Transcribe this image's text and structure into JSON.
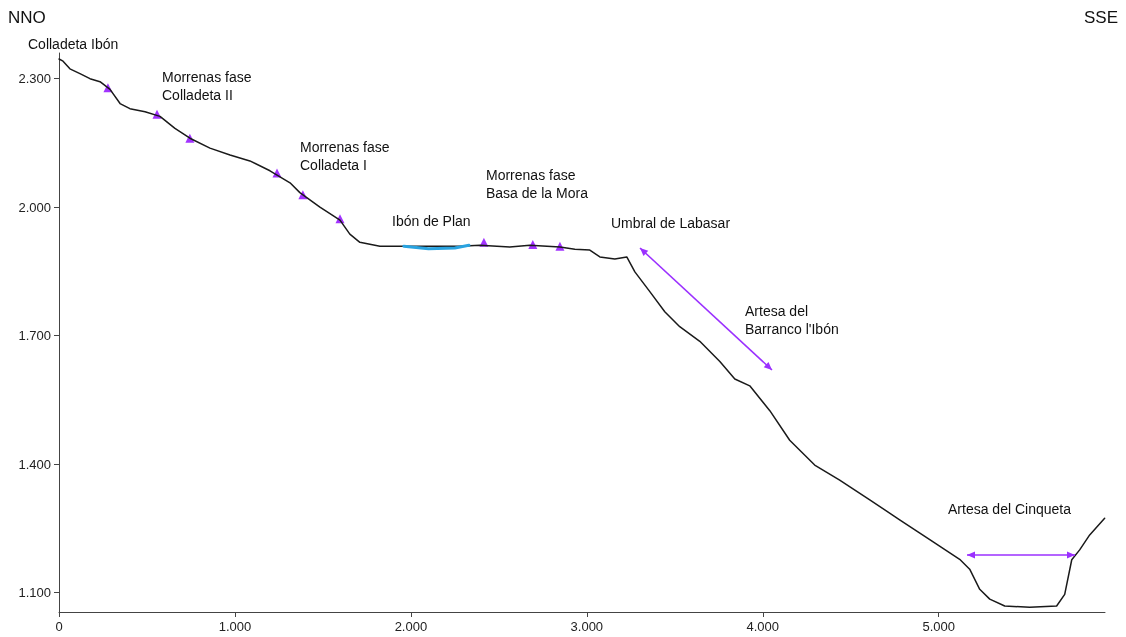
{
  "chart_data": {
    "type": "line",
    "xlim": [
      0,
      5945
    ],
    "ylim": [
      1055,
      2360
    ],
    "xticks": [
      0,
      {
        "value": 1000,
        "label": "1.000"
      },
      {
        "value": 2000,
        "label": "2.000"
      },
      {
        "value": 3000,
        "label": "3.000"
      },
      {
        "value": 4000,
        "label": "4.000"
      },
      {
        "value": 5000,
        "label": "5.000"
      }
    ],
    "yticks": [
      {
        "value": 1100,
        "label": "1.100"
      },
      {
        "value": 1400,
        "label": "1.400"
      },
      {
        "value": 1700,
        "label": "1.700"
      },
      {
        "value": 2000,
        "label": "2.000"
      },
      {
        "value": 2300,
        "label": "2.300"
      }
    ],
    "grid": false,
    "marker": "none",
    "line_style": "solid",
    "series": [
      {
        "color": "#1a1a1a",
        "x": [
          0,
          23,
          62,
          119,
          176,
          233,
          290,
          347,
          403,
          489,
          574,
          659,
          744,
          858,
          972,
          1085,
          1199,
          1313,
          1369,
          1483,
          1597,
          1653,
          1710,
          1824,
          1994,
          2278,
          2392,
          2562,
          2676,
          2847,
          2932,
          3017,
          3074,
          3159,
          3227,
          3273,
          3358,
          3443,
          3528,
          3642,
          3756,
          3841,
          3926,
          4040,
          4153,
          4295,
          4437,
          4608,
          4778,
          4949,
          5119,
          5176,
          5233,
          5290,
          5375,
          5517,
          5670,
          5716,
          5756,
          5801,
          5858,
          5943
        ],
        "values": [
          2346,
          2341,
          2323,
          2312,
          2300,
          2293,
          2275,
          2242,
          2230,
          2223,
          2212,
          2184,
          2161,
          2138,
          2122,
          2108,
          2085,
          2057,
          2034,
          2000,
          1970,
          1937,
          1918,
          1909,
          1909,
          1909,
          1911,
          1907,
          1911,
          1907,
          1902,
          1900,
          1884,
          1879,
          1884,
          1849,
          1803,
          1756,
          1721,
          1687,
          1640,
          1599,
          1583,
          1525,
          1456,
          1398,
          1363,
          1317,
          1270,
          1224,
          1178,
          1155,
          1108,
          1085,
          1069,
          1066,
          1069,
          1096,
          1177,
          1200,
          1235,
          1274
        ]
      },
      {
        "color": "#29a3e0",
        "x": [
          1960,
          2100,
          2250,
          2330
        ],
        "values": [
          1909,
          1903,
          1905,
          1911
        ]
      },
      {
        "type": "scatter",
        "marker": "triangle",
        "color": "#8b00ff",
        "x": [
          278,
          557,
          744,
          1239,
          1386,
          1597,
          2415,
          2693,
          2847
        ],
        "values": [
          2279,
          2217,
          2161,
          2080,
          2029,
          1973,
          1918,
          1913,
          1909
        ]
      }
    ],
    "annotations": [
      "NNO",
      "SSE",
      "Colladeta Ibón",
      "Morrenas fase\nColladeta II",
      "Morrenas fase\nColladeta I",
      "Ibón de Plan",
      "Morrenas fase\nBasa de la Mora",
      "Umbral de Labasar",
      "Artesa del\nBarranco l'Ibón",
      "Artesa del Cinqueta"
    ]
  }
}
